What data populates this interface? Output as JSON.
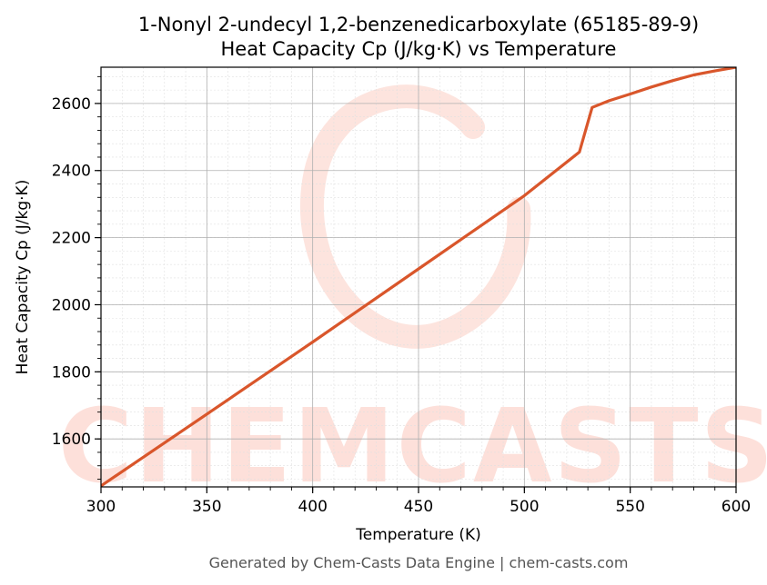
{
  "chart_data": {
    "type": "line",
    "title": "1-Nonyl 2-undecyl 1,2-benzenedicarboxylate (65185-89-9)",
    "subtitle": "Heat Capacity Cp (J/kg·K) vs Temperature",
    "xlabel": "Temperature (K)",
    "ylabel": "Heat Capacity Cp (J/kg·K)",
    "xlim": [
      300,
      600
    ],
    "ylim": [
      1457,
      2708
    ],
    "xticks": [
      300,
      350,
      400,
      450,
      500,
      550,
      600
    ],
    "yticks": [
      1600,
      1800,
      2000,
      2200,
      2400,
      2600
    ],
    "grid": true,
    "series": [
      {
        "color": "#d9562b",
        "x": [
          300,
          350,
          400,
          450,
          500,
          526,
          532,
          540,
          550,
          560,
          570,
          580,
          590,
          600
        ],
        "y": [
          1460,
          1674,
          1889,
          2107,
          2325,
          2455,
          2588,
          2608,
          2628,
          2649,
          2668,
          2685,
          2697,
          2708
        ]
      }
    ],
    "watermark": "CHEMCASTS"
  },
  "footer": "Generated by Chem-Casts Data Engine | chem-casts.com"
}
